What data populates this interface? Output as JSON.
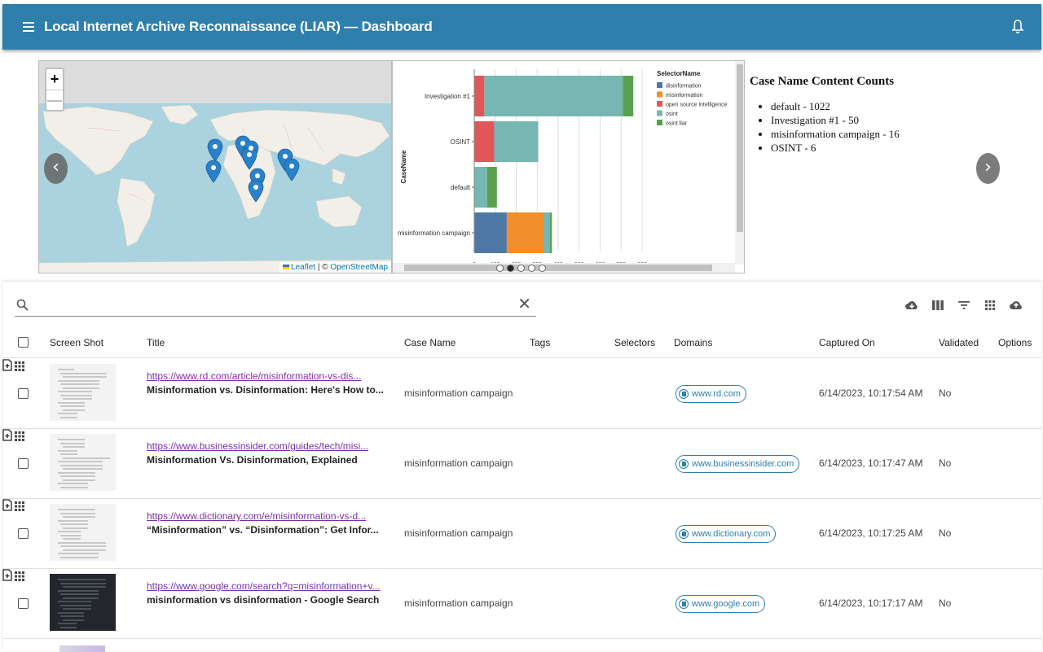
{
  "app": {
    "title": "Local Internet Archive Reconnaissance (LIAR) — Dashboard"
  },
  "map": {
    "zoom_in": "+",
    "zoom_out": "—",
    "attribution_leaflet": "Leaflet",
    "attribution_sep": " | © ",
    "attribution_osm": "OpenStreetMap"
  },
  "carousel": {
    "prev": "‹",
    "next": "›",
    "slide_count": 5,
    "active_slide": 1
  },
  "chart_data": {
    "type": "bar",
    "orientation": "horizontal-stacked",
    "categories": [
      "Investigation #1",
      "OSINT",
      "default",
      "misinformation campaign"
    ],
    "ylabel": "CaseName",
    "legend_title": "SelectorName",
    "legend_position": "top-right",
    "xlim": [
      0,
      800
    ],
    "xticks": [
      0,
      100,
      200,
      300,
      400,
      500,
      600,
      700,
      800
    ],
    "series": [
      {
        "name": "disinformation",
        "color": "#4e79a7",
        "values": [
          0,
          0,
          0,
          155
        ]
      },
      {
        "name": "misinformation",
        "color": "#f28e2b",
        "values": [
          0,
          0,
          0,
          175
        ]
      },
      {
        "name": "open source intelligence",
        "color": "#e15759",
        "values": [
          48,
          95,
          0,
          0
        ]
      },
      {
        "name": "osint",
        "color": "#76b7b2",
        "values": [
          660,
          210,
          62,
          30
        ]
      },
      {
        "name": "osint liar",
        "color": "#59a14f",
        "values": [
          50,
          0,
          46,
          10
        ]
      }
    ]
  },
  "counts": {
    "title": "Case Name Content Counts",
    "items": [
      "default - 1022",
      "Investigation #1 - 50",
      "misinformation campaign - 16",
      "OSINT - 6"
    ]
  },
  "search": {
    "placeholder": "",
    "value": "",
    "clear": "✕"
  },
  "table": {
    "headers": {
      "screenshot": "Screen Shot",
      "title": "Title",
      "case": "Case Name",
      "tags": "Tags",
      "selectors": "Selectors",
      "domains": "Domains",
      "captured": "Captured On",
      "validated": "Validated",
      "options": "Options"
    },
    "rows": [
      {
        "url": "https://www.rd.com/article/misinformation-vs-dis...",
        "title": "Misinformation vs. Disinformation: Here's How to...",
        "case": "misinformation campaign",
        "domain": "www.rd.com",
        "captured": "6/14/2023, 10:17:54 AM",
        "validated": "No",
        "thumb": "light"
      },
      {
        "url": "https://www.businessinsider.com/guides/tech/misi...",
        "title": "Misinformation Vs. Disinformation, Explained",
        "case": "misinformation campaign",
        "domain": "www.businessinsider.com",
        "captured": "6/14/2023, 10:17:47 AM",
        "validated": "No",
        "thumb": "light"
      },
      {
        "url": "https://www.dictionary.com/e/misinformation-vs-d...",
        "title": "“Misinformation” vs. “Disinformation”: Get Infor...",
        "case": "misinformation campaign",
        "domain": "www.dictionary.com",
        "captured": "6/14/2023, 10:17:25 AM",
        "validated": "No",
        "thumb": "light"
      },
      {
        "url": "https://www.google.com/search?q=misinformation+v...",
        "title": "misinformation vs disinformation - Google Search",
        "case": "misinformation campaign",
        "domain": "www.google.com",
        "captured": "6/14/2023, 10:17:17 AM",
        "validated": "No",
        "thumb": "dark"
      }
    ]
  }
}
